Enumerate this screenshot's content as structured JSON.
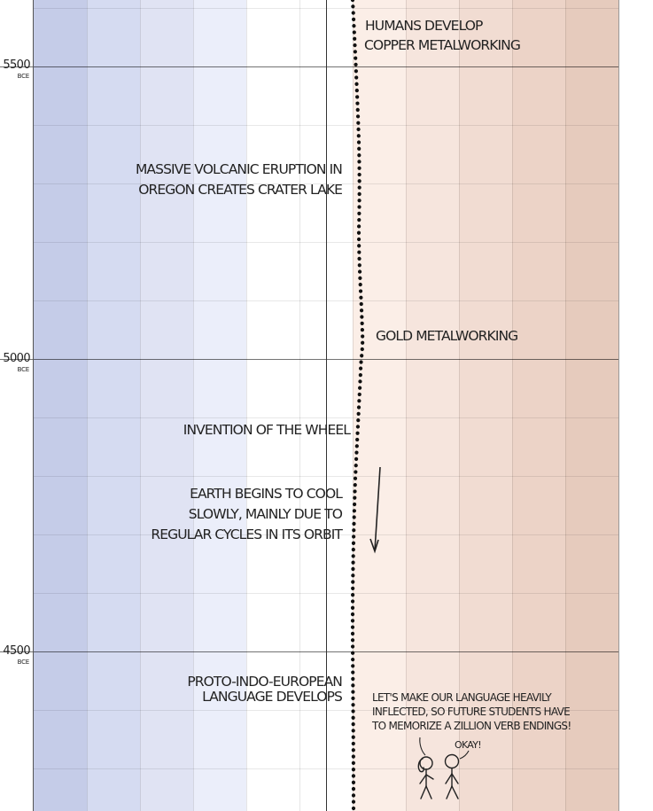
{
  "bands": {
    "colors": [
      "#c5cce8",
      "#d5dbf1",
      "#e0e3f3",
      "#ebeefa",
      "#ffffff",
      "#ffffff",
      "#fbeee7",
      "#f6e5dd",
      "#f1dcd2",
      "#ecd3c7",
      "#e6cbbd"
    ]
  },
  "axis": {
    "ticks": [
      {
        "year": "5500",
        "era": "BCE"
      },
      {
        "year": "5000",
        "era": "BCE"
      },
      {
        "year": "4500",
        "era": "BCE"
      }
    ]
  },
  "events": [
    {
      "id": "copper",
      "lines": [
        "HUMANS DEVELOP",
        "COPPER METALWORKING"
      ],
      "side": "right"
    },
    {
      "id": "crater-lake",
      "lines": [
        "MASSIVE VOLCANIC ERUPTION IN",
        "OREGON CREATES CRATER LAKE"
      ],
      "side": "left"
    },
    {
      "id": "gold",
      "lines": [
        "GOLD METALWORKING"
      ],
      "side": "right"
    },
    {
      "id": "wheel",
      "lines": [
        "INVENTION OF THE WHEEL"
      ],
      "side": "left"
    },
    {
      "id": "cooling",
      "lines": [
        "EARTH BEGINS TO COOL",
        "SLOWLY, MAINLY DUE TO",
        "REGULAR CYCLES IN ITS ORBIT"
      ],
      "side": "left"
    },
    {
      "id": "pie",
      "lines": [
        "PROTO-INDO-EUROPEAN",
        "LANGUAGE DEVELOPS"
      ],
      "side": "left"
    }
  ],
  "dialogue": {
    "speaker_1": [
      "LET'S MAKE OUR LANGUAGE HEAVILY",
      "INFLECTED, SO FUTURE STUDENTS HAVE",
      "TO MEMORIZE A ZILLION VERB ENDINGS!"
    ],
    "speaker_2": "OKAY!"
  }
}
